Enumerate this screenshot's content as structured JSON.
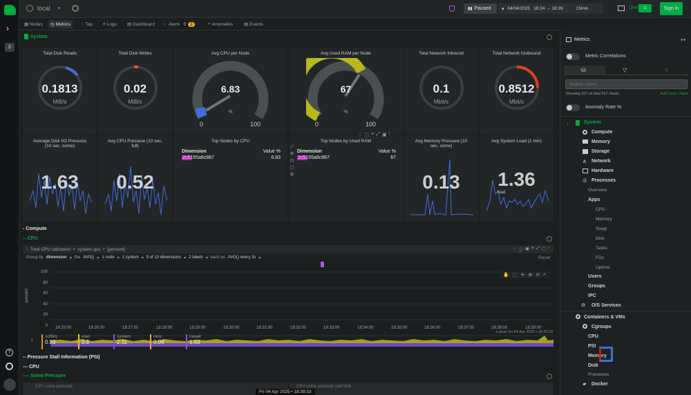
{
  "topbar": {
    "space": "local",
    "status": "Paused",
    "date": "04/04/2025",
    "time_range": "18:24 → 18:39",
    "duration": "15min",
    "live_label": "Live",
    "live_count": "1",
    "signin": "Sign in"
  },
  "left": {
    "badge": "2"
  },
  "tabs": [
    "Nodes",
    "Metrics",
    "Top",
    "Logs",
    "Dashboard",
    "Alerts",
    "Anomalies",
    "Events"
  ],
  "alerts_badges": [
    "0",
    "1"
  ],
  "section": {
    "system": "System",
    "compute": "- Compute",
    "cpu": "-- CPU",
    "psi": "-- Pressure Stall Information (PSI)",
    "psi_cpu": "--- CPU",
    "some_pressure": "---- Some Pressure"
  },
  "gauges": [
    {
      "title": "Total Disk Reads",
      "value": "0.1813",
      "unit": "MiB/s",
      "fill": 0.1
    },
    {
      "title": "Total Disk Writes",
      "value": "0.02",
      "unit": "MiB/s",
      "fill": 0.02
    },
    {
      "title": "Avg CPU per Node",
      "value": "6.83",
      "unit": "%",
      "min": "0",
      "max": "100",
      "fill": 0.0683
    },
    {
      "title": "Avg Used RAM per Node",
      "value": "67",
      "unit": "%",
      "min": "0",
      "max": "100",
      "fill": 0.67
    },
    {
      "title": "Total Network Inbound",
      "value": "0.1",
      "unit": "Mbit/s",
      "fill": 0.0
    },
    {
      "title": "Total Network Outbound",
      "value": "0.8512",
      "unit": "Mbit/s",
      "fill": 0.3
    }
  ],
  "row2": {
    "disk_io": {
      "title": "Average Disk I/O Pressure (10 sec, some)",
      "value": "1.63"
    },
    "cpu_pressure": {
      "title": "Avg CPU Pressure (10 sec, full)",
      "value": "0.52"
    },
    "top_cpu": {
      "title": "Top Nodes by CPU",
      "col1": "Dimension",
      "col2": "Value %",
      "node": "2c5195a8c887",
      "val": "6.83"
    },
    "top_ram": {
      "title": "Top Nodes by Used RAM",
      "col1": "Dimension",
      "col2": "Value %",
      "node": "2c5195a8c887",
      "val": "67"
    },
    "mem_pressure": {
      "title": "Avg Memory Pressure (10 sec, some)",
      "value": "0.13"
    },
    "load": {
      "title": "Avg System Load (1 min)",
      "value": "1.36",
      "sub": "load"
    }
  },
  "cpu_chart": {
    "title": "Total CPU utilization",
    "context": "system.cpu",
    "units": "[percent]",
    "group_by": "Group by",
    "dimension": "dimension",
    "the": "the",
    "avg": "AVG()",
    "nodes": "1 node",
    "systems": "1 system",
    "dims": "9 of 10 dimensions",
    "labels": "2 labels",
    "each_as": "each as",
    "every": "AVG() every 3s",
    "reset": "Reset",
    "ylabel": "percent",
    "yticks": [
      "100",
      "80",
      "60",
      "40",
      "20",
      "0"
    ],
    "xticks": [
      "18:25:00",
      "18:26:00",
      "18:27:00",
      "18:28:00",
      "18:29:00",
      "18:30:00",
      "18:31:00",
      "18:32:00",
      "18:33:00",
      "18:34:00",
      "18:35:00",
      "18:36:00",
      "18:37:00",
      "18:38:00",
      "18:39:00"
    ],
    "latest": "Latest: Fri 04 Apr 2025 • 18:39:33",
    "legend": [
      {
        "name": "softirq",
        "value": "0.03",
        "unit": "%",
        "color": "#f08a1e"
      },
      {
        "name": "user",
        "value": "2.8",
        "unit": "%",
        "color": "#e8c21f"
      },
      {
        "name": "system",
        "value": "2.11",
        "unit": "%",
        "color": "#7b55d8"
      },
      {
        "name": "nice",
        "value": "0.06",
        "unit": "%",
        "color": "#f0a040"
      },
      {
        "name": "iowait",
        "value": "1.83",
        "unit": "%",
        "color": "#8a5ad0"
      }
    ]
  },
  "bottom": {
    "chart1": "CPU some pressure",
    "chart2": "CPU some pressure stall time",
    "timestamp": "Fri 04 Apr 2025 • 18:39:33"
  },
  "right": {
    "title": "Metrics",
    "correlations": "Metric Correlations",
    "search_placeholder": "Search charts",
    "showing": "Showing 317 of total 317 charts",
    "add_more": "Add more charts",
    "anomaly": "Anomaly Rate %",
    "tree": [
      {
        "label": "System",
        "level": 0,
        "color": "#00ab44"
      },
      {
        "label": "Compute",
        "level": 1
      },
      {
        "label": "Memory",
        "level": 1
      },
      {
        "label": "Storage",
        "level": 1
      },
      {
        "label": "Network",
        "level": 1
      },
      {
        "label": "Hardware",
        "level": 1
      },
      {
        "label": "Processes",
        "level": 1
      },
      {
        "label": "Overview",
        "level": 2
      },
      {
        "label": "Apps",
        "level": 2,
        "bold": true
      },
      {
        "label": "CPU",
        "level": 3
      },
      {
        "label": "Memory",
        "level": 3
      },
      {
        "label": "Swap",
        "level": 3
      },
      {
        "label": "Disk",
        "level": 3
      },
      {
        "label": "Tasks",
        "level": 3
      },
      {
        "label": "FDs",
        "level": 3
      },
      {
        "label": "Uptime",
        "level": 3
      },
      {
        "label": "Users",
        "level": 2,
        "bold": true
      },
      {
        "label": "Groups",
        "level": 2,
        "bold": true
      },
      {
        "label": "IPC",
        "level": 2,
        "bold": true
      },
      {
        "label": "O/S Services",
        "level": 1
      },
      {
        "label": "Containers & VMs",
        "level": 1,
        "gap": true
      },
      {
        "label": "Cgroups",
        "level": 2
      },
      {
        "label": "CPU",
        "level": 3,
        "bold": true
      },
      {
        "label": "PSI",
        "level": 3,
        "bold": true
      },
      {
        "label": "Memory",
        "level": 3,
        "bold": true
      },
      {
        "label": "Disk",
        "level": 3,
        "bold": true
      },
      {
        "label": "Processes",
        "level": 3
      },
      {
        "label": "Docker",
        "level": 2
      }
    ]
  }
}
